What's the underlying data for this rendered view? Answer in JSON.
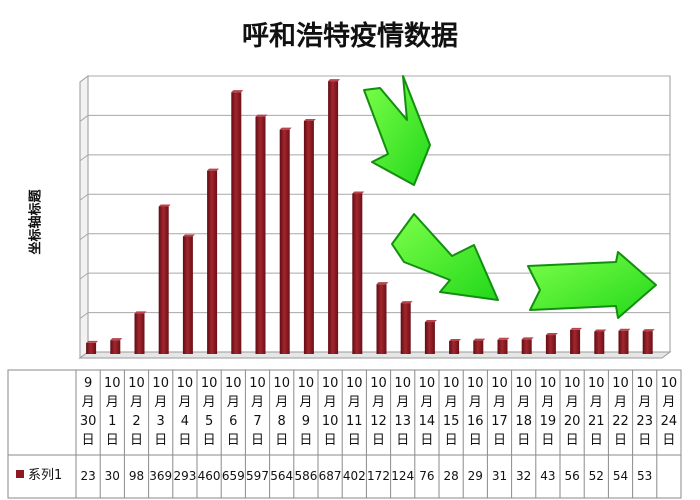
{
  "chart_data": {
    "type": "bar",
    "title": "呼和浩特疫情数据",
    "ylabel": "坐标轴标题",
    "xlabel": "",
    "ylim": [
      0,
      700
    ],
    "grid": true,
    "legend": "bottom-left (data table)",
    "categories": [
      "9月30日",
      "10月1日",
      "10月2日",
      "10月3日",
      "10月4日",
      "10月5日",
      "10月6日",
      "10月7日",
      "10月8日",
      "10月9日",
      "10月10日",
      "10月11日",
      "10月12日",
      "10月13日",
      "10月14日",
      "10月15日",
      "10月16日",
      "10月17日",
      "10月18日",
      "10月19日",
      "10月20日",
      "10月21日",
      "10月22日",
      "10月23日",
      "10月24日"
    ],
    "series": [
      {
        "name": "系列1",
        "color": "#8b1a22",
        "values": [
          23,
          30,
          98,
          369,
          293,
          460,
          659,
          597,
          564,
          586,
          687,
          402,
          172,
          124,
          76,
          28,
          29,
          31,
          32,
          43,
          56,
          52,
          54,
          53,
          null
        ]
      }
    ],
    "annotations": [
      "green-arrow-down",
      "green-arrow-down-right",
      "green-arrow-right"
    ]
  }
}
